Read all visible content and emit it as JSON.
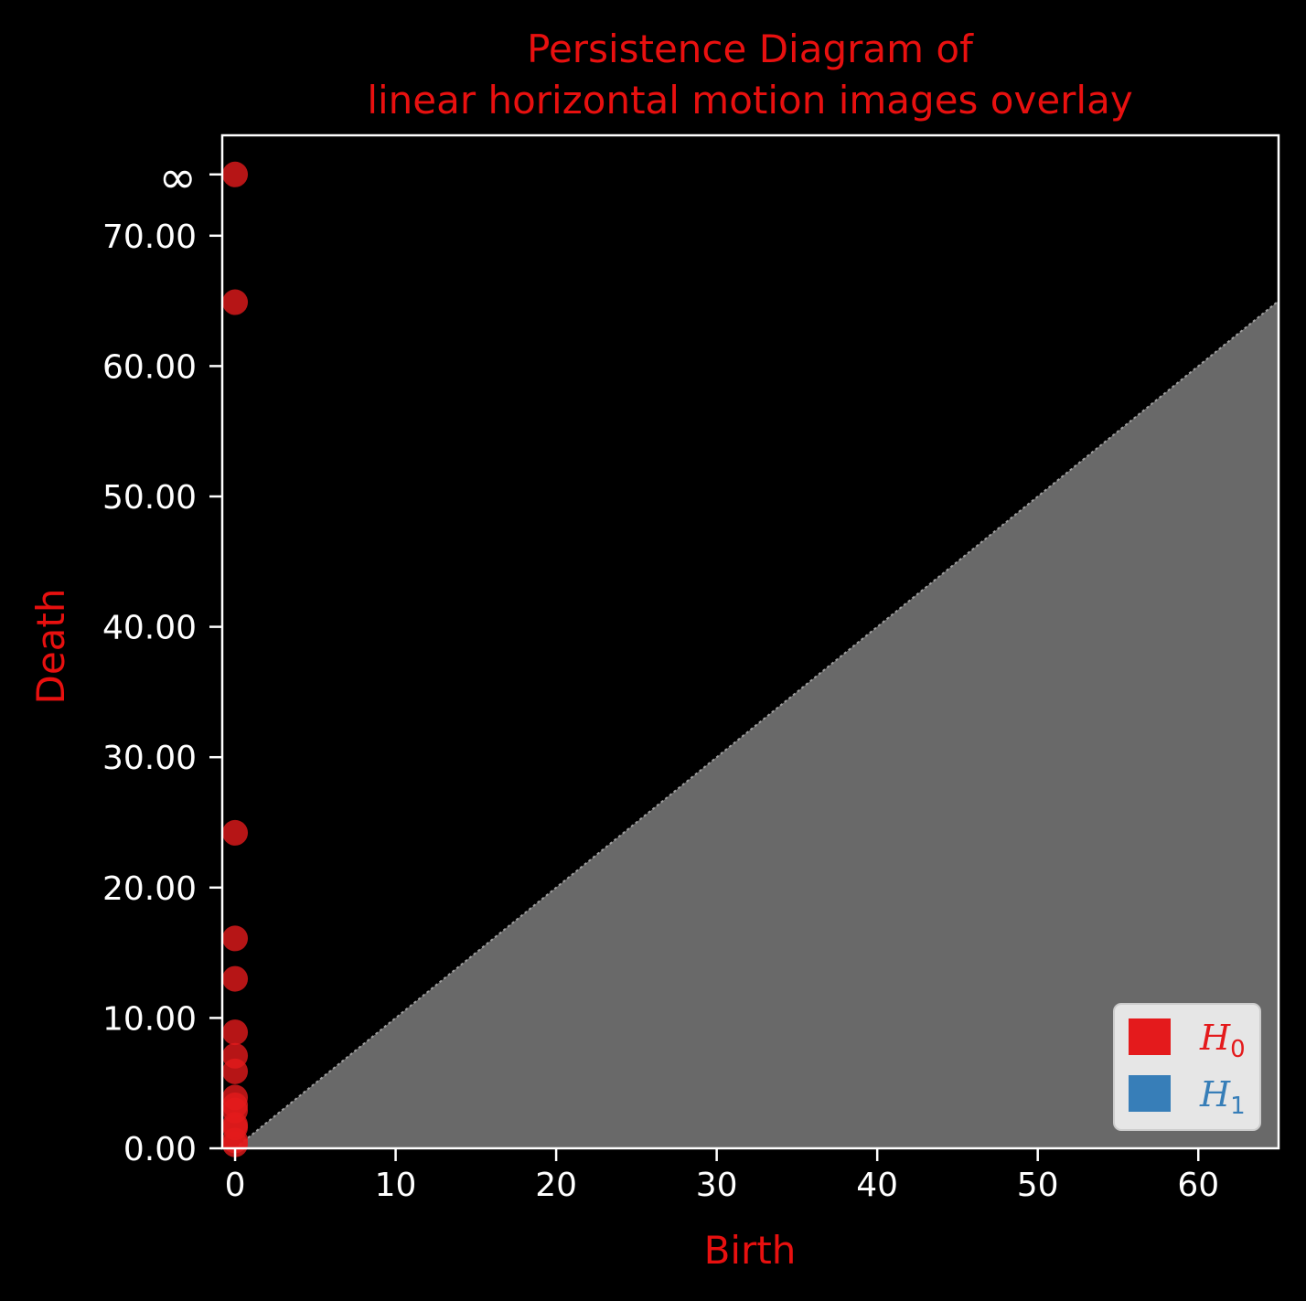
{
  "chart_data": {
    "type": "scatter",
    "title_lines": [
      "Persistence Diagram of",
      "linear horizontal motion images overlay"
    ],
    "xlabel": "Birth",
    "ylabel": "Death",
    "xlim": [
      -0.8,
      65
    ],
    "ylim": [
      0,
      77.7
    ],
    "x_ticks": [
      0,
      10,
      20,
      30,
      40,
      50,
      60
    ],
    "x_tick_labels": [
      "0",
      "10",
      "20",
      "30",
      "40",
      "50",
      "60"
    ],
    "y_ticks": [
      0,
      10,
      20,
      30,
      40,
      50,
      60,
      70
    ],
    "y_tick_labels": [
      "0.00",
      "10.00",
      "20.00",
      "30.00",
      "40.00",
      "50.00",
      "60.00",
      "70.00"
    ],
    "infinity_label": "∞",
    "infinity_value": 74.7,
    "diagonal_shaded": true,
    "legend_position": "bottom-right",
    "legend": [
      {
        "symbol": "H",
        "sub": "0",
        "color": "#e41a1c"
      },
      {
        "symbol": "H",
        "sub": "1",
        "color": "#377eb8"
      }
    ],
    "series": [
      {
        "name": "H0",
        "color": "#e41a1c",
        "points": [
          [
            0,
            0.3
          ],
          [
            0,
            0.6
          ],
          [
            0,
            1.6
          ],
          [
            0,
            1.8
          ],
          [
            0,
            2.9
          ],
          [
            0,
            3.3
          ],
          [
            0,
            3.9
          ],
          [
            0,
            5.9
          ],
          [
            0,
            7.1
          ],
          [
            0,
            8.9
          ],
          [
            0,
            13.0
          ],
          [
            0,
            16.1
          ],
          [
            0,
            24.2
          ],
          [
            0,
            64.9
          ],
          [
            0,
            74.7
          ]
        ]
      },
      {
        "name": "H1",
        "color": "#377eb8",
        "points": []
      }
    ]
  }
}
